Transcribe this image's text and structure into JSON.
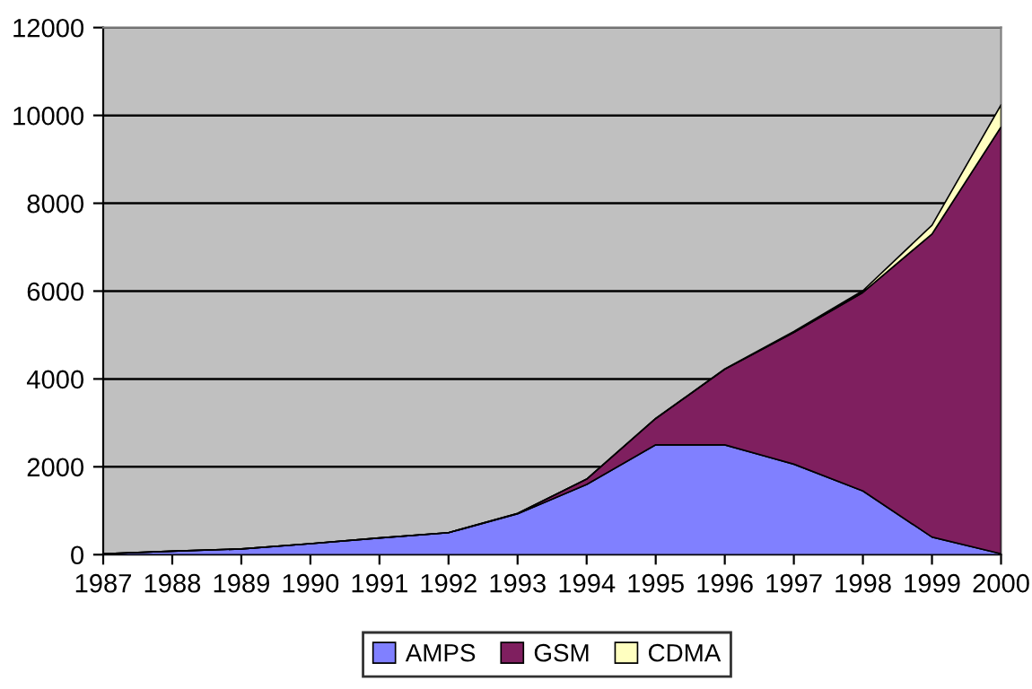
{
  "chart_data": {
    "type": "area",
    "stacked": true,
    "x": [
      1987,
      1988,
      1989,
      1990,
      1991,
      1992,
      1993,
      1994,
      1995,
      1996,
      1997,
      1998,
      1999,
      2000
    ],
    "series": [
      {
        "name": "AMPS",
        "color": "#8080ff",
        "values": [
          20,
          80,
          130,
          250,
          380,
          500,
          930,
          1600,
          2500,
          2500,
          2060,
          1450,
          400,
          20
        ]
      },
      {
        "name": "GSM",
        "color": "#7f1f5f",
        "values": [
          0,
          0,
          0,
          0,
          0,
          0,
          10,
          120,
          600,
          1720,
          3000,
          4520,
          6900,
          9720
        ]
      },
      {
        "name": "CDMA",
        "color": "#ffffc0",
        "values": [
          0,
          0,
          0,
          0,
          0,
          0,
          0,
          0,
          0,
          10,
          20,
          40,
          200,
          500
        ]
      }
    ],
    "xlim": [
      1987,
      2000
    ],
    "xticks": [
      1987,
      1988,
      1989,
      1990,
      1991,
      1992,
      1993,
      1994,
      1995,
      1996,
      1997,
      1998,
      1999,
      2000
    ],
    "ylim": [
      0,
      12000
    ],
    "yticks": [
      0,
      2000,
      4000,
      6000,
      8000,
      10000,
      12000
    ],
    "grid": "y",
    "legend": "bottom"
  }
}
